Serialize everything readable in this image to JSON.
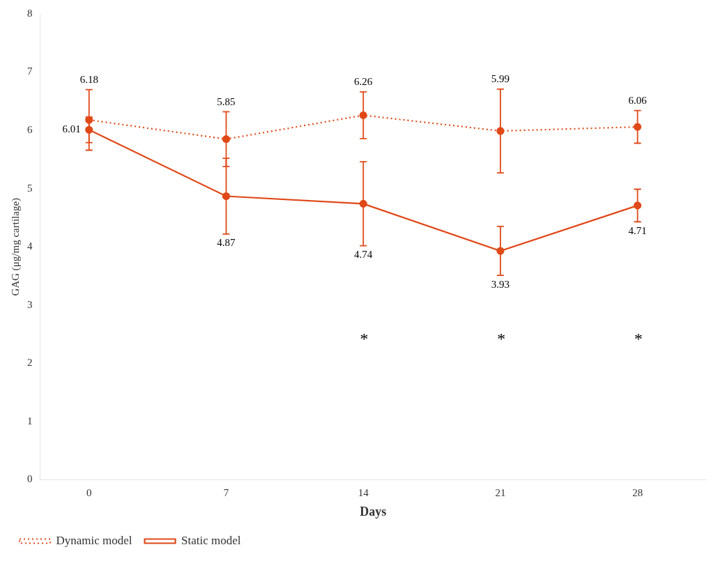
{
  "chart_data": {
    "type": "line",
    "x": [
      0,
      7,
      14,
      21,
      28
    ],
    "series": [
      {
        "name": "Dynamic model",
        "color": "#E04918",
        "values": [
          6.18,
          5.85,
          6.26,
          5.99,
          6.06
        ],
        "errors": [
          0.52,
          0.47,
          0.4,
          0.72,
          0.28
        ],
        "marker": "circle",
        "line_style": "dotted"
      },
      {
        "name": "Static model",
        "color": "#E04918",
        "values": [
          6.01,
          4.87,
          4.74,
          3.93,
          4.71
        ],
        "errors": [
          0.22,
          0.65,
          0.72,
          0.42,
          0.28
        ],
        "marker": "circle",
        "line_style": "solid"
      }
    ],
    "xlabel": "Days",
    "ylabel": "GAG (μg/mg cartilage)",
    "xlim": [
      -2.5,
      31.5
    ],
    "xticks": [
      0,
      7,
      14,
      21,
      28
    ],
    "ylim": [
      0,
      8
    ],
    "yticks": [
      0,
      1,
      2,
      3,
      4,
      5,
      6,
      7,
      8
    ],
    "annotations": [
      {
        "text": "*",
        "x": 14,
        "y": 2.4
      },
      {
        "text": "*",
        "x": 21,
        "y": 2.4
      },
      {
        "text": "*",
        "x": 28,
        "y": 2.4
      }
    ],
    "data_labels": true,
    "grid": false,
    "legend": "lower left"
  }
}
